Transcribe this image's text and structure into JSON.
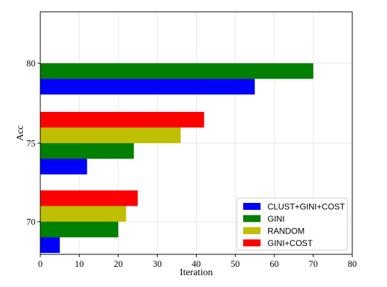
{
  "chart_data": {
    "type": "bar",
    "orientation": "horizontal",
    "title": "",
    "xlabel": "Iteration",
    "ylabel": "Acc",
    "xlim": [
      0,
      80
    ],
    "xticks": [
      0,
      10,
      20,
      30,
      40,
      50,
      60,
      70,
      80
    ],
    "categories": [
      "70",
      "75",
      "80"
    ],
    "grid": true,
    "legend_position": "lower-right",
    "series": [
      {
        "name": "CLUST+GINI+COST",
        "color": "#0000ff",
        "values": [
          5,
          12,
          55
        ]
      },
      {
        "name": "GINI",
        "color": "#008000",
        "values": [
          20,
          24,
          70
        ]
      },
      {
        "name": "RANDOM",
        "color": "#bfbf00",
        "values": [
          22,
          36,
          null
        ]
      },
      {
        "name": "GINI+COST",
        "color": "#ff0000",
        "values": [
          25,
          42,
          null
        ]
      }
    ]
  }
}
